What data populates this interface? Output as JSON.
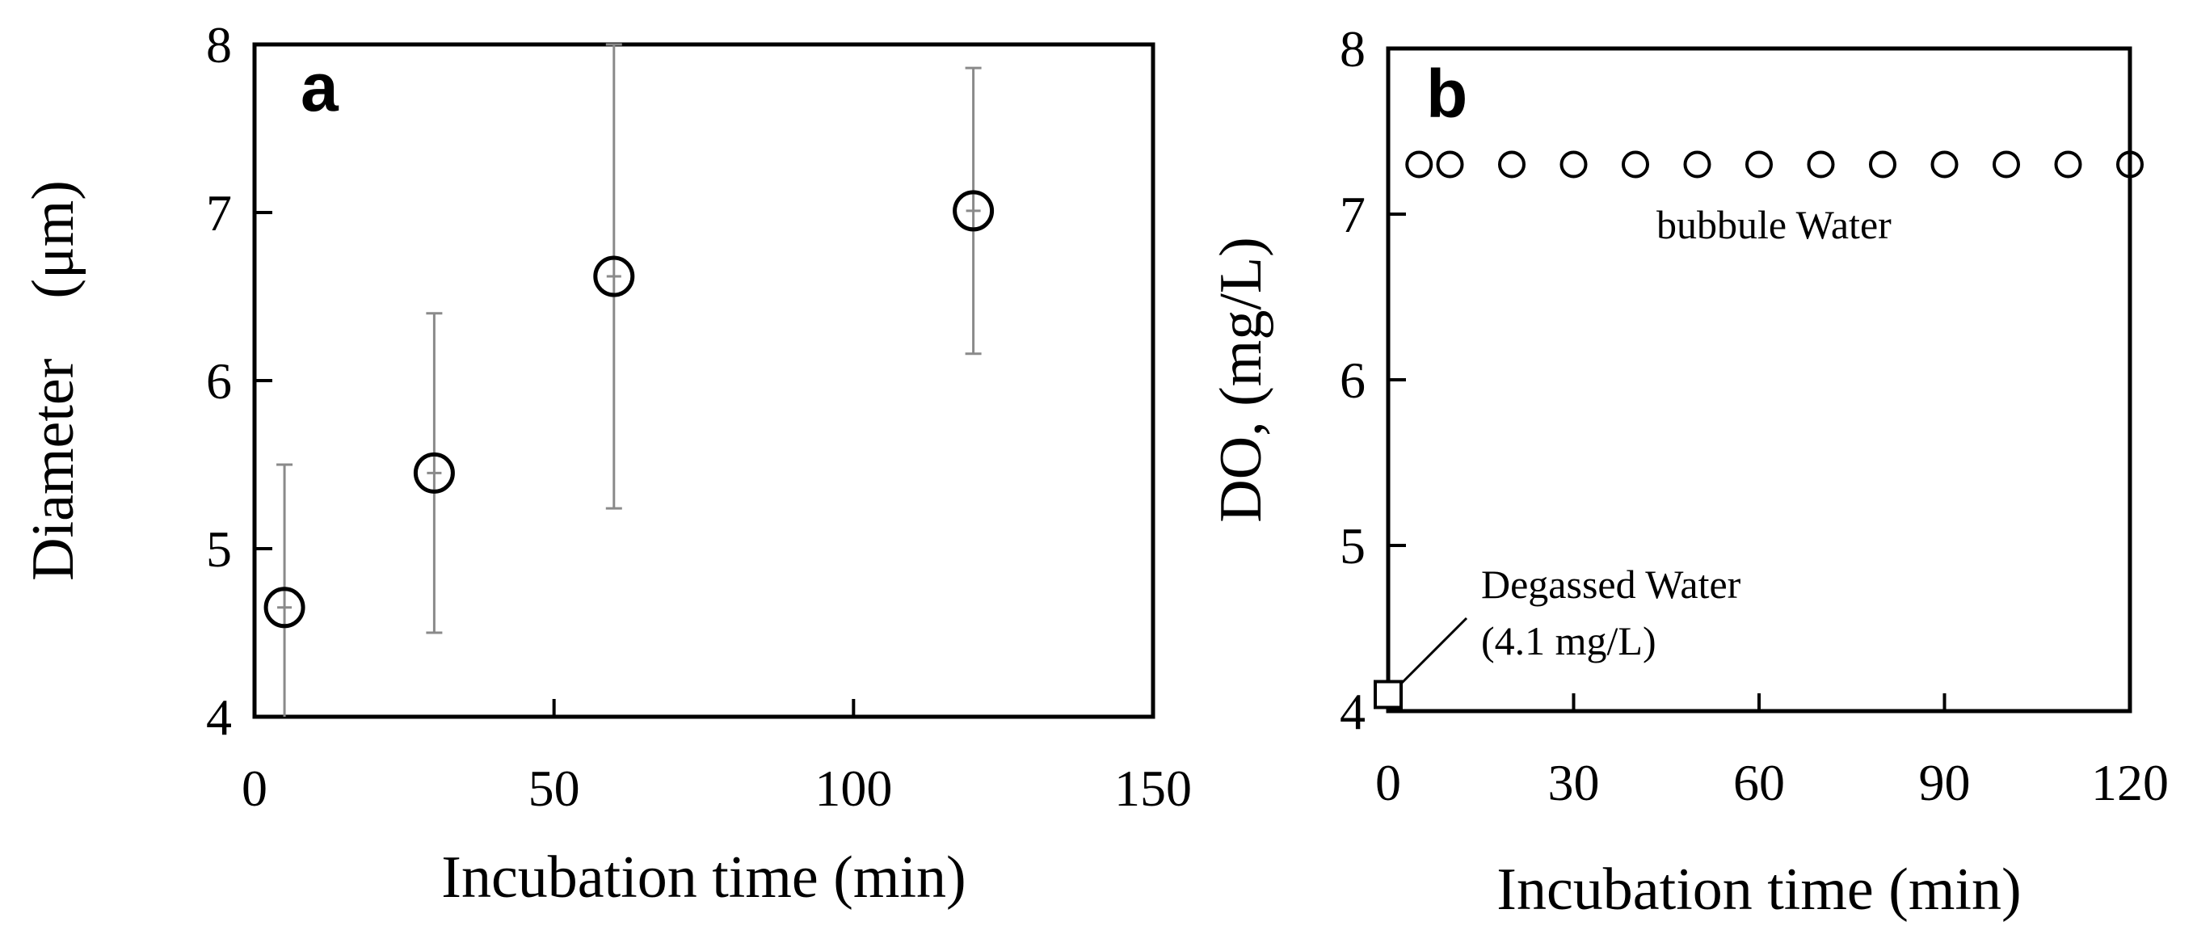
{
  "chart_data": [
    {
      "type": "scatter",
      "panel_label": "a",
      "xlabel": "Incubation time (min)",
      "ylabel": "Diameter　(μm)",
      "xlim": [
        0,
        150
      ],
      "ylim": [
        4,
        8
      ],
      "xticks": [
        0,
        50,
        100,
        150
      ],
      "yticks": [
        4,
        5,
        6,
        7,
        8
      ],
      "grid": false,
      "series": [
        {
          "marker": "open-circle",
          "x": [
            5,
            30,
            60,
            120
          ],
          "y": [
            4.65,
            5.45,
            6.62,
            7.01
          ],
          "y_error": [
            0.85,
            0.95,
            1.38,
            0.85
          ]
        }
      ]
    },
    {
      "type": "scatter",
      "panel_label": "b",
      "xlabel": "Incubation time (min)",
      "ylabel": "DO, (mg/L)",
      "xlim": [
        0,
        120
      ],
      "ylim": [
        4,
        8
      ],
      "xticks": [
        0,
        30,
        60,
        90,
        120
      ],
      "yticks": [
        4,
        5,
        6,
        7,
        8
      ],
      "grid": false,
      "series": [
        {
          "marker": "open-circle",
          "x": [
            5,
            10,
            20,
            30,
            40,
            50,
            60,
            70,
            80,
            90,
            100,
            110,
            120
          ],
          "y": [
            7.3,
            7.3,
            7.3,
            7.3,
            7.3,
            7.3,
            7.3,
            7.3,
            7.3,
            7.3,
            7.3,
            7.3,
            7.3
          ]
        },
        {
          "marker": "open-square",
          "x": [
            0
          ],
          "y": [
            4.1
          ]
        }
      ],
      "annotations": [
        {
          "text": "bubbule Water"
        },
        {
          "lines": [
            "Degassed Water",
            "(4.1 mg/L)"
          ]
        }
      ]
    }
  ]
}
